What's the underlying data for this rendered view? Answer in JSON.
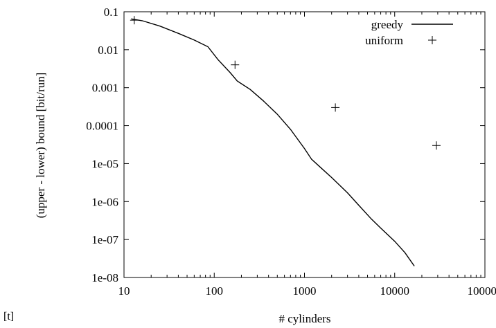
{
  "page": {
    "caption_fragment": "[t]"
  },
  "chart_data": {
    "type": "line",
    "title": "",
    "xlabel": "# cylinders",
    "ylabel": "(upper - lower) bound [bit/run]",
    "x_scale": "log",
    "y_scale": "log",
    "xlim": [
      10,
      100000
    ],
    "ylim": [
      1e-08,
      0.1
    ],
    "grid": false,
    "legend_position": "top-right",
    "x_ticks": [
      {
        "value": 10,
        "label": "10"
      },
      {
        "value": 100,
        "label": "100"
      },
      {
        "value": 1000,
        "label": "1000"
      },
      {
        "value": 10000,
        "label": "10000"
      },
      {
        "value": 100000,
        "label": "100000"
      }
    ],
    "y_ticks": [
      {
        "value": 0.1,
        "label": "0.1"
      },
      {
        "value": 0.01,
        "label": "0.01"
      },
      {
        "value": 0.001,
        "label": "0.001"
      },
      {
        "value": 0.0001,
        "label": "0.0001"
      },
      {
        "value": 1e-05,
        "label": "1e-05"
      },
      {
        "value": 1e-06,
        "label": "1e-06"
      },
      {
        "value": 1e-07,
        "label": "1e-07"
      },
      {
        "value": 1e-08,
        "label": "1e-08"
      }
    ],
    "series": [
      {
        "name": "greedy",
        "style": "line",
        "color": "#000000",
        "points": [
          [
            12,
            0.065
          ],
          [
            16,
            0.058
          ],
          [
            25,
            0.042
          ],
          [
            40,
            0.027
          ],
          [
            60,
            0.018
          ],
          [
            85,
            0.012
          ],
          [
            110,
            0.0055
          ],
          [
            150,
            0.0025
          ],
          [
            180,
            0.0015
          ],
          [
            250,
            0.0009
          ],
          [
            350,
            0.00045
          ],
          [
            500,
            0.0002
          ],
          [
            700,
            8e-05
          ],
          [
            1000,
            2.5e-05
          ],
          [
            1200,
            1.3e-05
          ],
          [
            1500,
            8e-06
          ],
          [
            2000,
            4.3e-06
          ],
          [
            3000,
            1.7e-06
          ],
          [
            4000,
            8e-07
          ],
          [
            5500,
            3.5e-07
          ],
          [
            7000,
            2e-07
          ],
          [
            10000,
            9e-08
          ],
          [
            13000,
            4.5e-08
          ],
          [
            16500,
            2e-08
          ]
        ]
      },
      {
        "name": "uniform",
        "style": "points",
        "marker": "plus",
        "color": "#000000",
        "points": [
          [
            13,
            0.06
          ],
          [
            170,
            0.004
          ],
          [
            2200,
            0.0003
          ],
          [
            29000,
            3e-05
          ]
        ]
      }
    ]
  }
}
